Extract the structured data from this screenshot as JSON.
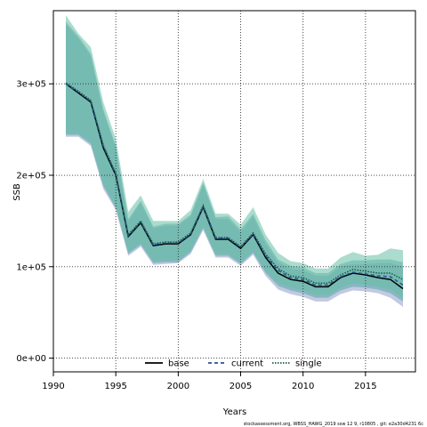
{
  "chart_data": {
    "type": "area",
    "xlabel": "Years",
    "ylabel": "SSB",
    "xlim": [
      1990,
      2019
    ],
    "ylim": [
      -15000,
      380000
    ],
    "x_ticks": [
      1990,
      1995,
      2000,
      2005,
      2010,
      2015
    ],
    "y_ticks": [
      0,
      100000,
      200000,
      300000
    ],
    "y_tick_labels": [
      "0e+00",
      "1e+05",
      "2e+05",
      "3e+05"
    ],
    "grid": true,
    "legend_position": "bottom-center",
    "x": [
      1991,
      1992,
      1993,
      1994,
      1995,
      1996,
      1997,
      1998,
      1999,
      2000,
      2001,
      2002,
      2003,
      2004,
      2005,
      2006,
      2007,
      2008,
      2009,
      2010,
      2011,
      2012,
      2013,
      2014,
      2015,
      2016,
      2017,
      2018
    ],
    "series": [
      {
        "name": "base",
        "line_style": "solid",
        "line_color": "#000000",
        "values": [
          300000,
          290000,
          280000,
          230000,
          200000,
          133000,
          148000,
          123000,
          125000,
          125000,
          135000,
          165000,
          130000,
          130000,
          120000,
          135000,
          110000,
          93000,
          86000,
          84000,
          78000,
          78000,
          88000,
          93000,
          91000,
          88000,
          86000,
          76000
        ],
        "band_upper": [
          365000,
          350000,
          330000,
          270000,
          230000,
          150000,
          170000,
          142000,
          145000,
          145000,
          155000,
          190000,
          152000,
          152000,
          138000,
          155000,
          125000,
          105000,
          98000,
          96000,
          90000,
          90000,
          100000,
          103000,
          103000,
          104000,
          104000,
          100000
        ],
        "band_lower": [
          242000,
          242000,
          232000,
          185000,
          162000,
          112000,
          122000,
          102000,
          103000,
          104000,
          114000,
          140000,
          110000,
          110000,
          101000,
          113000,
          90000,
          75000,
          70000,
          67000,
          62000,
          62000,
          70000,
          74000,
          73000,
          71000,
          66000,
          56000
        ],
        "band_color": "#8e9ec8"
      },
      {
        "name": "current",
        "line_style": "dashed",
        "line_color": "#2a5298",
        "values": [
          300000,
          291000,
          281000,
          232000,
          201000,
          134000,
          149000,
          124000,
          126000,
          126000,
          136000,
          166000,
          131000,
          131000,
          121000,
          136000,
          112000,
          96000,
          88000,
          86000,
          80000,
          80000,
          89000,
          94000,
          92000,
          90000,
          89000,
          80000
        ],
        "band_upper": [
          368000,
          352000,
          333000,
          272000,
          232000,
          152000,
          172000,
          144000,
          147000,
          147000,
          157000,
          192000,
          154000,
          155000,
          141000,
          158000,
          129000,
          108000,
          101000,
          99000,
          93000,
          93000,
          103000,
          107000,
          107000,
          108000,
          108000,
          105000
        ],
        "band_lower": [
          244000,
          244000,
          234000,
          188000,
          164000,
          114000,
          124000,
          104000,
          105000,
          105000,
          116000,
          142000,
          112000,
          112000,
          103000,
          115000,
          93000,
          79000,
          74000,
          71000,
          66000,
          66000,
          74000,
          78000,
          77000,
          75000,
          71000,
          62000
        ],
        "band_color": "#5aa8a8"
      },
      {
        "name": "single",
        "line_style": "dotted",
        "line_color": "#1c5c46",
        "values": [
          301000,
          292000,
          282000,
          233000,
          202000,
          135000,
          150000,
          125000,
          127000,
          127000,
          137000,
          167000,
          132000,
          132000,
          122000,
          137000,
          114000,
          98000,
          90000,
          88000,
          82000,
          82000,
          91000,
          97000,
          95000,
          93000,
          93000,
          86000
        ],
        "band_upper": [
          375000,
          355000,
          340000,
          280000,
          240000,
          160000,
          178000,
          150000,
          150000,
          150000,
          162000,
          196000,
          158000,
          158000,
          146000,
          165000,
          135000,
          115000,
          106000,
          104000,
          98000,
          98000,
          110000,
          116000,
          112000,
          113000,
          120000,
          118000
        ],
        "band_lower": [
          246000,
          246000,
          236000,
          190000,
          166000,
          116000,
          126000,
          106000,
          107000,
          107000,
          118000,
          144000,
          114000,
          114000,
          105000,
          117000,
          95000,
          82000,
          77000,
          74000,
          69000,
          69000,
          77000,
          82000,
          80000,
          78000,
          75000,
          66000
        ],
        "band_color": "#66bfa6"
      }
    ]
  },
  "footer_text": "stockassessment.org,  WBSS_HAWG_2019  ssw  12  9,  r10805 ,  git:  e2a30d4231 6c"
}
